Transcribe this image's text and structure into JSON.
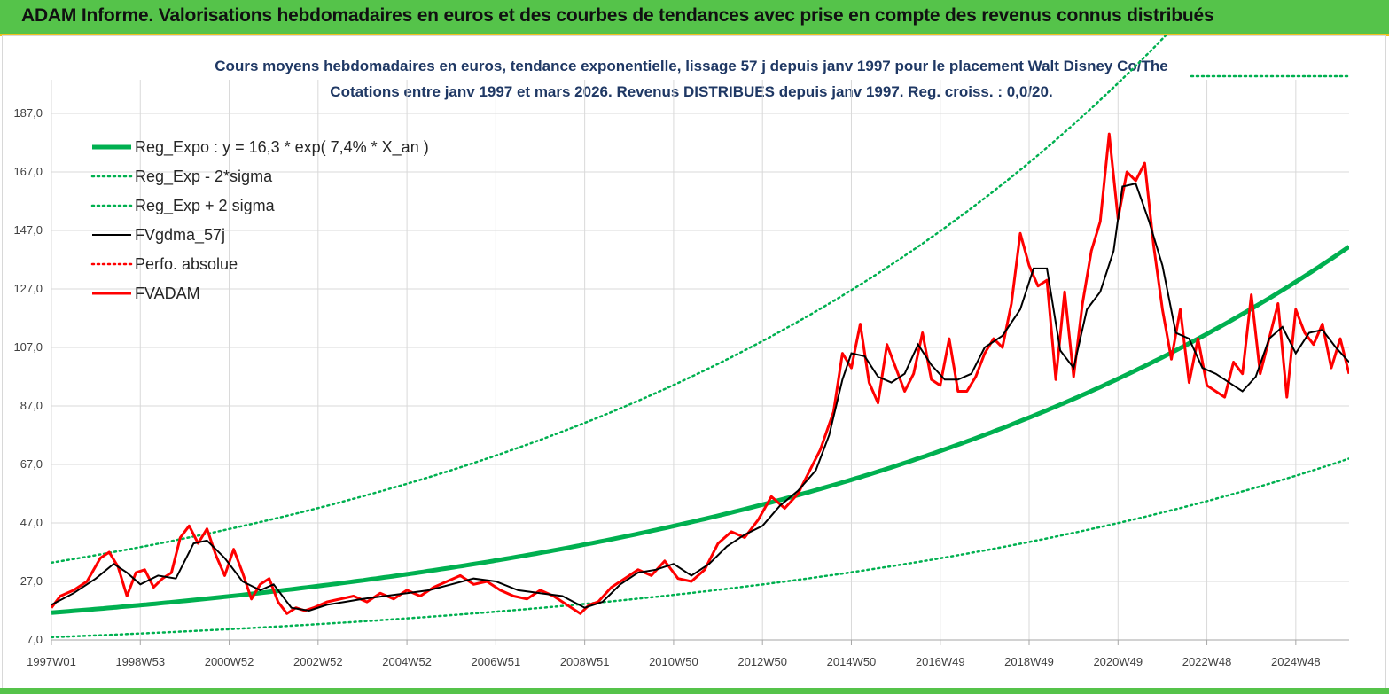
{
  "header": {
    "title": "ADAM Informe. Valorisations hebdomadaires en euros et des courbes de tendances avec prise en compte des revenus connus distribués"
  },
  "chart_data": {
    "type": "line",
    "title": "Cours moyens hebdomadaires en euros, tendance exponentielle, lissage 57 j depuis janv 1997 pour le placement Walt Disney Co/The",
    "subtitle": "Cotations entre janv 1997 et mars 2026. Revenus DISTRIBUES depuis janv 1997. Reg. croiss. : 0,0/20.",
    "xlabel": "",
    "ylabel": "",
    "ylim": [
      7,
      195
    ],
    "xlim": [
      1997.0,
      2026.2
    ],
    "grid": true,
    "legend_position": "top-left",
    "y_ticks": [
      "7,0",
      "27,0",
      "47,0",
      "67,0",
      "87,0",
      "107,0",
      "127,0",
      "147,0",
      "167,0",
      "187,0"
    ],
    "y_tick_values": [
      7,
      27,
      47,
      67,
      87,
      107,
      127,
      147,
      167,
      187
    ],
    "x_ticks": [
      "1997W01",
      "1998W53",
      "2000W52",
      "2002W52",
      "2004W52",
      "2006W51",
      "2008W51",
      "2010W50",
      "2012W50",
      "2014W50",
      "2016W49",
      "2018W49",
      "2020W49",
      "2022W48",
      "2024W48"
    ],
    "x_tick_years": [
      1997.0,
      1999.0,
      2001.0,
      2003.0,
      2005.0,
      2007.0,
      2009.0,
      2011.0,
      2013.0,
      2015.0,
      2017.0,
      2019.0,
      2021.0,
      2023.0,
      2025.0
    ],
    "regression": {
      "a": 16.3,
      "rate": 0.074,
      "sigma_factor": 2.05
    },
    "series": [
      {
        "name": "Reg_Expo : y = 16,3 * exp( 7,4% *  X_an )",
        "color": "#00b050",
        "style": "thick"
      },
      {
        "name": "Reg_Exp - 2*sigma",
        "color": "#00b050",
        "style": "dotted"
      },
      {
        "name": "Reg_Exp + 2 sigma",
        "color": "#00b050",
        "style": "dotted"
      },
      {
        "name": "FVgdma_57j",
        "color": "#000000",
        "style": "solid",
        "x": [
          1997.0,
          1997.5,
          1998.0,
          1998.4,
          1998.7,
          1999.0,
          1999.4,
          1999.8,
          2000.2,
          2000.5,
          2000.9,
          2001.3,
          2001.7,
          2002.0,
          2002.4,
          2002.8,
          2003.2,
          2003.6,
          2004.0,
          2004.5,
          2005.0,
          2005.5,
          2006.0,
          2006.5,
          2007.0,
          2007.5,
          2008.0,
          2008.5,
          2009.0,
          2009.4,
          2009.8,
          2010.2,
          2010.6,
          2011.0,
          2011.4,
          2011.8,
          2012.2,
          2012.6,
          2013.0,
          2013.4,
          2013.8,
          2014.2,
          2014.5,
          2014.8,
          2015.0,
          2015.3,
          2015.6,
          2015.9,
          2016.2,
          2016.5,
          2016.8,
          2017.1,
          2017.4,
          2017.7,
          2018.0,
          2018.4,
          2018.8,
          2019.1,
          2019.4,
          2019.7,
          2020.0,
          2020.3,
          2020.6,
          2020.9,
          2021.1,
          2021.4,
          2021.7,
          2022.0,
          2022.3,
          2022.6,
          2022.9,
          2023.2,
          2023.5,
          2023.8,
          2024.1,
          2024.4,
          2024.7,
          2025.0,
          2025.3,
          2025.6,
          2025.9,
          2026.2
        ],
        "y": [
          19,
          23,
          28,
          33,
          30,
          26,
          29,
          28,
          40,
          41,
          35,
          27,
          24,
          26,
          18,
          17,
          19,
          20,
          21,
          22,
          23,
          24,
          26,
          28,
          27,
          24,
          23,
          22,
          18,
          20,
          26,
          30,
          31,
          33,
          29,
          33,
          39,
          43,
          46,
          53,
          58,
          65,
          77,
          96,
          105,
          104,
          97,
          95,
          98,
          108,
          101,
          96,
          96,
          98,
          107,
          111,
          120,
          134,
          134,
          106,
          100,
          120,
          126,
          140,
          162,
          163,
          150,
          135,
          112,
          110,
          100,
          98,
          95,
          92,
          97,
          110,
          114,
          105,
          112,
          113,
          107,
          102
        ]
      },
      {
        "name": "Perfo. absolue",
        "color": "#ff0000",
        "style": "dotted"
      },
      {
        "name": "FVADAM",
        "color": "#ff0000",
        "style": "thick",
        "x": [
          1997.0,
          1997.2,
          1997.5,
          1997.8,
          1998.1,
          1998.3,
          1998.5,
          1998.7,
          1998.9,
          1999.1,
          1999.3,
          1999.5,
          1999.7,
          1999.9,
          2000.1,
          2000.3,
          2000.5,
          2000.7,
          2000.9,
          2001.1,
          2001.3,
          2001.5,
          2001.7,
          2001.9,
          2002.1,
          2002.3,
          2002.5,
          2002.7,
          2002.9,
          2003.2,
          2003.5,
          2003.8,
          2004.1,
          2004.4,
          2004.7,
          2005.0,
          2005.3,
          2005.6,
          2005.9,
          2006.2,
          2006.5,
          2006.8,
          2007.1,
          2007.4,
          2007.7,
          2008.0,
          2008.3,
          2008.6,
          2008.9,
          2009.1,
          2009.3,
          2009.6,
          2009.9,
          2010.2,
          2010.5,
          2010.8,
          2011.1,
          2011.4,
          2011.7,
          2012.0,
          2012.3,
          2012.6,
          2012.9,
          2013.2,
          2013.5,
          2013.8,
          2014.1,
          2014.3,
          2014.6,
          2014.8,
          2015.0,
          2015.2,
          2015.4,
          2015.6,
          2015.8,
          2016.0,
          2016.2,
          2016.4,
          2016.6,
          2016.8,
          2017.0,
          2017.2,
          2017.4,
          2017.6,
          2017.8,
          2018.0,
          2018.2,
          2018.4,
          2018.6,
          2018.8,
          2019.0,
          2019.2,
          2019.4,
          2019.6,
          2019.8,
          2020.0,
          2020.2,
          2020.4,
          2020.6,
          2020.8,
          2021.0,
          2021.2,
          2021.4,
          2021.6,
          2021.8,
          2022.0,
          2022.2,
          2022.4,
          2022.6,
          2022.8,
          2023.0,
          2023.2,
          2023.4,
          2023.6,
          2023.8,
          2024.0,
          2024.2,
          2024.4,
          2024.6,
          2024.8,
          2025.0,
          2025.2,
          2025.4,
          2025.6,
          2025.8,
          2026.0,
          2026.2
        ],
        "y": [
          18,
          22,
          24,
          27,
          35,
          37,
          32,
          22,
          30,
          31,
          25,
          28,
          30,
          42,
          46,
          40,
          45,
          36,
          29,
          38,
          30,
          21,
          26,
          28,
          20,
          16,
          18,
          17,
          18,
          20,
          21,
          22,
          20,
          23,
          21,
          24,
          22,
          25,
          27,
          29,
          26,
          27,
          24,
          22,
          21,
          24,
          22,
          19,
          16,
          19,
          20,
          25,
          28,
          31,
          29,
          34,
          28,
          27,
          31,
          40,
          44,
          42,
          48,
          56,
          52,
          57,
          66,
          72,
          85,
          105,
          100,
          115,
          95,
          88,
          108,
          100,
          92,
          98,
          112,
          96,
          94,
          110,
          92,
          92,
          97,
          105,
          110,
          107,
          122,
          146,
          135,
          128,
          130,
          96,
          126,
          97,
          122,
          140,
          150,
          180,
          151,
          167,
          164,
          170,
          142,
          120,
          103,
          120,
          95,
          110,
          94,
          92,
          90,
          102,
          98,
          125,
          98,
          110,
          122,
          90,
          120,
          112,
          108,
          115,
          100,
          110,
          98
        ]
      }
    ]
  }
}
